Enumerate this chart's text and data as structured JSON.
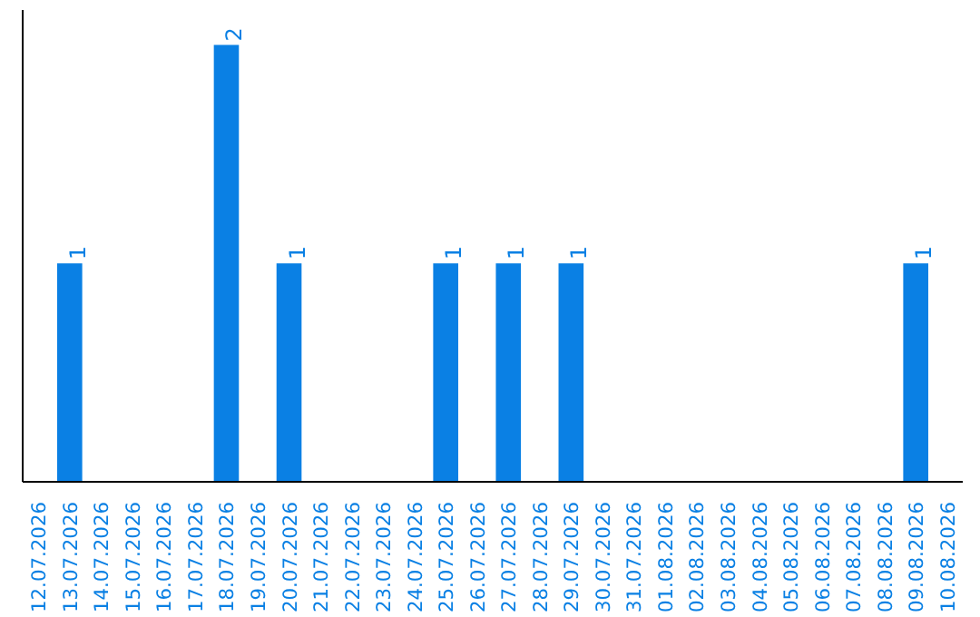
{
  "chart_data": {
    "type": "bar",
    "categories": [
      "12.07.2026",
      "13.07.2026",
      "14.07.2026",
      "15.07.2026",
      "16.07.2026",
      "17.07.2026",
      "18.07.2026",
      "19.07.2026",
      "20.07.2026",
      "21.07.2026",
      "22.07.2026",
      "23.07.2026",
      "24.07.2026",
      "25.07.2026",
      "26.07.2026",
      "27.07.2026",
      "28.07.2026",
      "29.07.2026",
      "30.07.2026",
      "31.07.2026",
      "01.08.2026",
      "02.08.2026",
      "03.08.2026",
      "04.08.2026",
      "05.08.2026",
      "06.08.2026",
      "07.08.2026",
      "08.08.2026",
      "09.08.2026",
      "10.08.2026"
    ],
    "values": [
      0,
      1,
      0,
      0,
      0,
      0,
      2,
      0,
      1,
      0,
      0,
      0,
      0,
      1,
      0,
      1,
      0,
      1,
      0,
      0,
      0,
      0,
      0,
      0,
      0,
      0,
      0,
      0,
      1,
      0
    ],
    "value_labels": [
      null,
      "1",
      null,
      null,
      null,
      null,
      "2",
      null,
      "1",
      null,
      null,
      null,
      null,
      "1",
      null,
      "1",
      null,
      "1",
      null,
      null,
      null,
      null,
      null,
      null,
      null,
      null,
      null,
      null,
      "1",
      null
    ],
    "color": "#0a80e4",
    "grid": false
  }
}
